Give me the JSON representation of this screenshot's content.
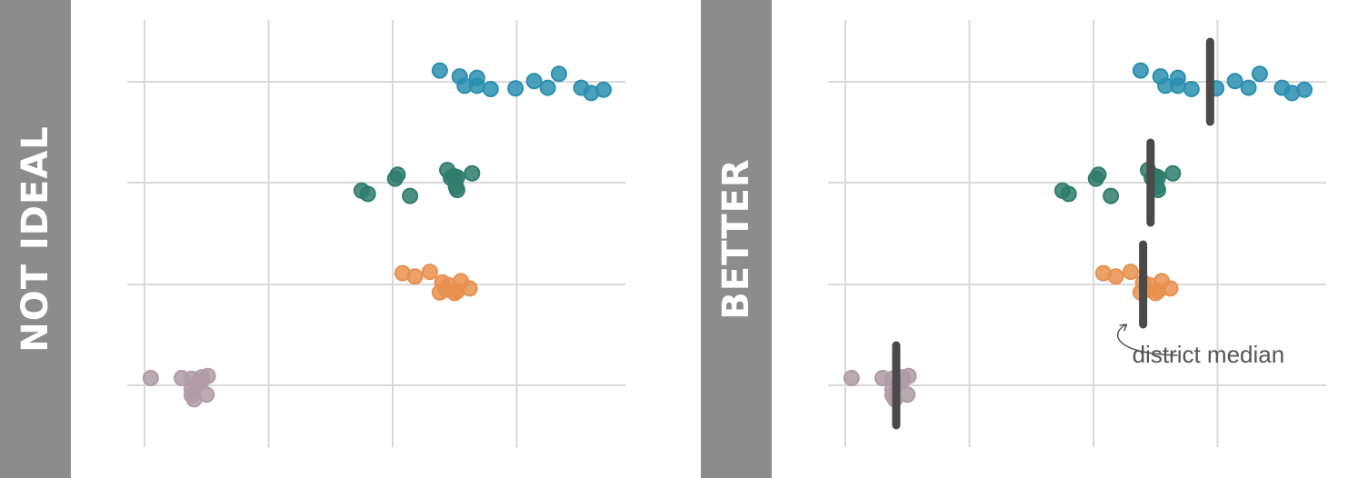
{
  "panels": {
    "left": {
      "label": "NOT IDEAL"
    },
    "right": {
      "label": "BETTER",
      "annotation": "district median"
    }
  },
  "colors": {
    "label_bar": "#8c8c8c",
    "grid": "#d9d9d9",
    "median_line": "#4a4a4a",
    "groups": [
      "#2b8fb0",
      "#2f7d6d",
      "#e8904e",
      "#b09ba6"
    ]
  },
  "chart_data": [
    {
      "type": "scatter",
      "title": "",
      "xlabel": "",
      "ylabel": "",
      "xlim": [
        0,
        4
      ],
      "x_gridlines": [
        0,
        1,
        2,
        3
      ],
      "y_gridlines": [
        0,
        1,
        2,
        3
      ],
      "show_medians": false,
      "series": [
        {
          "y": 3,
          "x": [
            2.38,
            2.54,
            2.58,
            2.68,
            2.68,
            2.79,
            2.99,
            3.14,
            3.25,
            3.34,
            3.52,
            3.6,
            3.7
          ],
          "jitter": [
            0.17,
            0.08,
            -0.06,
            -0.06,
            0.06,
            -0.11,
            -0.1,
            0.01,
            -0.09,
            0.12,
            -0.09,
            -0.17,
            -0.12
          ]
        },
        {
          "y": 2,
          "x": [
            1.75,
            1.8,
            2.02,
            2.04,
            2.14,
            2.44,
            2.47,
            2.49,
            2.5,
            2.51,
            2.52,
            2.52,
            2.64
          ],
          "jitter": [
            -0.12,
            -0.17,
            0.06,
            0.12,
            -0.2,
            0.19,
            0.07,
            0.1,
            0.09,
            -0.06,
            -0.11,
            0.08,
            0.14
          ]
        },
        {
          "y": 1,
          "x": [
            2.08,
            2.18,
            2.3,
            2.38,
            2.4,
            2.43,
            2.45,
            2.5,
            2.52,
            2.55,
            2.62
          ],
          "jitter": [
            0.17,
            0.12,
            0.19,
            -0.12,
            0.03,
            -0.08,
            -0.01,
            -0.13,
            -0.1,
            0.05,
            -0.06
          ]
        },
        {
          "y": 0,
          "x": [
            0.05,
            0.3,
            0.38,
            0.38,
            0.38,
            0.4,
            0.43,
            0.46,
            0.46,
            0.5,
            0.51
          ],
          "jitter": [
            0.11,
            0.11,
            0.1,
            -0.06,
            -0.15,
            -0.21,
            0.05,
            0.12,
            0.07,
            -0.14,
            0.14
          ]
        }
      ]
    },
    {
      "type": "scatter",
      "title": "",
      "xlabel": "",
      "ylabel": "",
      "xlim": [
        0,
        4
      ],
      "x_gridlines": [
        0,
        1,
        2,
        3
      ],
      "y_gridlines": [
        0,
        1,
        2,
        3
      ],
      "show_medians": true,
      "series": [
        {
          "y": 3,
          "x": [
            2.38,
            2.54,
            2.58,
            2.68,
            2.68,
            2.79,
            2.99,
            3.14,
            3.25,
            3.34,
            3.52,
            3.6,
            3.7
          ],
          "jitter": [
            0.17,
            0.08,
            -0.06,
            -0.06,
            0.06,
            -0.11,
            -0.1,
            0.01,
            -0.09,
            0.12,
            -0.09,
            -0.17,
            -0.12
          ],
          "median": 2.94
        },
        {
          "y": 2,
          "x": [
            1.75,
            1.8,
            2.02,
            2.04,
            2.14,
            2.44,
            2.47,
            2.49,
            2.5,
            2.51,
            2.52,
            2.52,
            2.64
          ],
          "jitter": [
            -0.12,
            -0.17,
            0.06,
            0.12,
            -0.2,
            0.19,
            0.07,
            0.1,
            0.09,
            -0.06,
            -0.11,
            0.08,
            0.14
          ],
          "median": 2.46
        },
        {
          "y": 1,
          "x": [
            2.08,
            2.18,
            2.3,
            2.38,
            2.4,
            2.43,
            2.45,
            2.5,
            2.52,
            2.55,
            2.62
          ],
          "jitter": [
            0.17,
            0.12,
            0.19,
            -0.12,
            0.03,
            -0.08,
            -0.01,
            -0.13,
            -0.1,
            0.05,
            -0.06
          ],
          "median": 2.4
        },
        {
          "y": 0,
          "x": [
            0.05,
            0.3,
            0.38,
            0.38,
            0.38,
            0.4,
            0.43,
            0.46,
            0.46,
            0.5,
            0.51
          ],
          "jitter": [
            0.11,
            0.11,
            0.1,
            -0.06,
            -0.15,
            -0.21,
            0.05,
            0.12,
            0.07,
            -0.14,
            0.14
          ],
          "median": 0.41
        }
      ]
    }
  ]
}
